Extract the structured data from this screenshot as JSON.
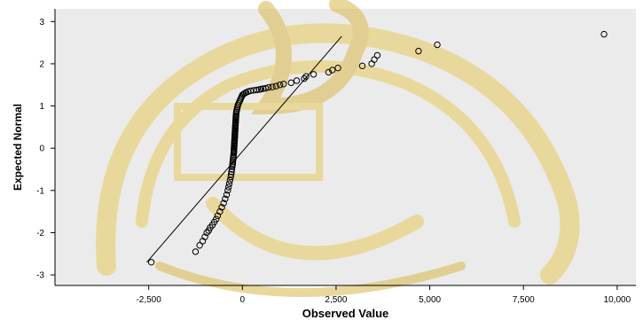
{
  "chart_data": {
    "type": "scatter",
    "title": "",
    "xlabel": "Observed Value",
    "ylabel": "Expected Normal",
    "xlim": [
      -5000,
      10500
    ],
    "ylim": [
      -3.25,
      3.3
    ],
    "xticks": [
      {
        "value": -2500,
        "label": "-2,500"
      },
      {
        "value": 0,
        "label": "0"
      },
      {
        "value": 2500,
        "label": "2,500"
      },
      {
        "value": 5000,
        "label": "5,000"
      },
      {
        "value": 7500,
        "label": "7,500"
      },
      {
        "value": 10000,
        "label": "10,000"
      }
    ],
    "yticks": [
      {
        "value": -3,
        "label": "-3"
      },
      {
        "value": -2,
        "label": "-2"
      },
      {
        "value": -1,
        "label": "-1"
      },
      {
        "value": 0,
        "label": "0"
      },
      {
        "value": 1,
        "label": "1"
      },
      {
        "value": 2,
        "label": "2"
      },
      {
        "value": 3,
        "label": "3"
      }
    ],
    "reference_line": [
      [
        -2550,
        -2.7
      ],
      [
        2650,
        2.65
      ]
    ],
    "grid": false,
    "plot_background": "#ebebeb",
    "watermark_color": "#e8c95a",
    "x": [
      -2430,
      -1250,
      -1140,
      -1060,
      -1000,
      -950,
      -900,
      -860,
      -800,
      -750,
      -700,
      -660,
      -600,
      -550,
      -500,
      -460,
      -420,
      -390,
      -370,
      -350,
      -330,
      -310,
      -300,
      -290,
      -280,
      -270,
      -265,
      -260,
      -255,
      -250,
      -245,
      -240,
      -235,
      -230,
      -228,
      -226,
      -224,
      -222,
      -220,
      -218,
      -216,
      -214,
      -212,
      -210,
      -208,
      -206,
      -204,
      -202,
      -200,
      -198,
      -196,
      -194,
      -192,
      -190,
      -188,
      -186,
      -184,
      -182,
      -180,
      -178,
      -176,
      -174,
      -172,
      -170,
      -165,
      -160,
      -150,
      -140,
      -130,
      -120,
      -100,
      -80,
      -60,
      -40,
      -20,
      0,
      30,
      60,
      100,
      150,
      220,
      300,
      380,
      450,
      500,
      550,
      620,
      700,
      800,
      900,
      1000,
      1100,
      1300,
      1450,
      1650,
      1700,
      1900,
      2300,
      2400,
      2550,
      3200,
      3450,
      3520,
      3600,
      4700,
      5200,
      9650
    ],
    "y": [
      -2.7,
      -2.45,
      -2.3,
      -2.2,
      -2.1,
      -2.0,
      -1.95,
      -1.88,
      -1.82,
      -1.75,
      -1.68,
      -1.6,
      -1.5,
      -1.4,
      -1.3,
      -1.2,
      -1.1,
      -1.0,
      -0.92,
      -0.84,
      -0.76,
      -0.68,
      -0.62,
      -0.56,
      -0.5,
      -0.44,
      -0.4,
      -0.36,
      -0.32,
      -0.28,
      -0.24,
      -0.2,
      -0.16,
      -0.12,
      -0.09,
      -0.06,
      -0.03,
      0.0,
      0.03,
      0.06,
      0.09,
      0.12,
      0.15,
      0.18,
      0.21,
      0.24,
      0.27,
      0.3,
      0.33,
      0.36,
      0.39,
      0.42,
      0.45,
      0.48,
      0.51,
      0.54,
      0.57,
      0.6,
      0.63,
      0.66,
      0.69,
      0.72,
      0.75,
      0.78,
      0.82,
      0.86,
      0.9,
      0.94,
      0.98,
      1.02,
      1.06,
      1.1,
      1.14,
      1.18,
      1.22,
      1.26,
      1.28,
      1.3,
      1.32,
      1.34,
      1.36,
      1.37,
      1.38,
      1.39,
      1.4,
      1.41,
      1.42,
      1.44,
      1.45,
      1.47,
      1.5,
      1.52,
      1.55,
      1.6,
      1.65,
      1.7,
      1.75,
      1.8,
      1.85,
      1.9,
      1.95,
      2.0,
      2.1,
      2.2,
      2.3,
      2.45,
      2.7
    ]
  }
}
